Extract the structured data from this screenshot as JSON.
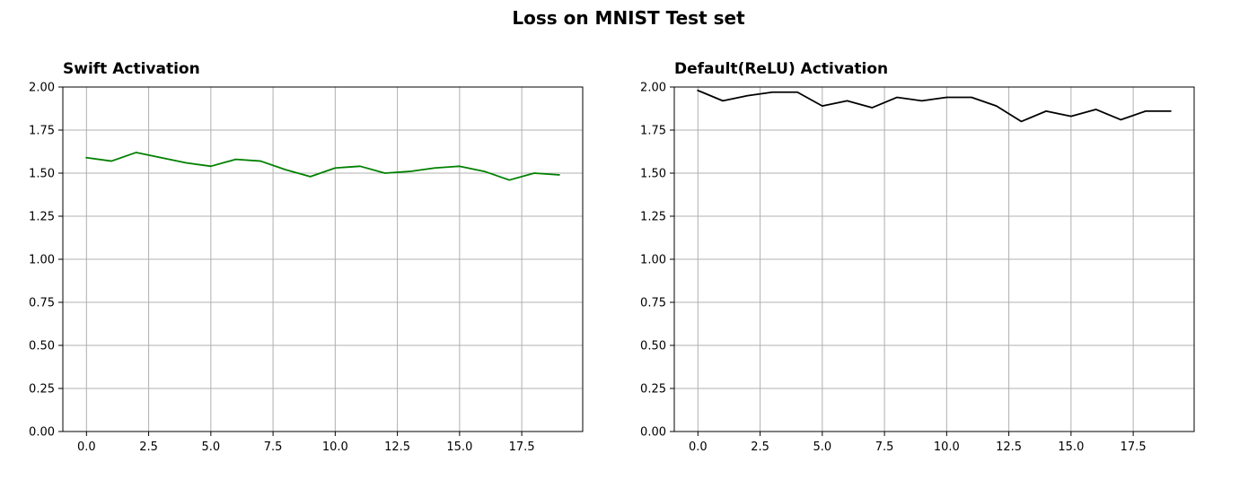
{
  "figure": {
    "title": "Loss on MNIST Test set"
  },
  "chart_data": [
    {
      "type": "line",
      "title": "Swift Activation",
      "xlabel": "",
      "ylabel": "",
      "xlim": [
        -0.95,
        19.95
      ],
      "ylim": [
        0,
        2
      ],
      "grid": true,
      "x_ticks": [
        0,
        2.5,
        5,
        7.5,
        10,
        12.5,
        15,
        17.5
      ],
      "x_tick_labels": [
        "0.0",
        "2.5",
        "5.0",
        "7.5",
        "10.0",
        "12.5",
        "15.0",
        "17.5"
      ],
      "y_ticks": [
        0,
        0.25,
        0.5,
        0.75,
        1,
        1.25,
        1.5,
        1.75,
        2
      ],
      "y_tick_labels": [
        "0.00",
        "0.25",
        "0.50",
        "0.75",
        "1.00",
        "1.25",
        "1.50",
        "1.75",
        "2.00"
      ],
      "series": [
        {
          "color": "#008000",
          "x": [
            0,
            1,
            2,
            3,
            4,
            5,
            6,
            7,
            8,
            9,
            10,
            11,
            12,
            13,
            14,
            15,
            16,
            17,
            18,
            19
          ],
          "y": [
            1.59,
            1.57,
            1.62,
            1.59,
            1.56,
            1.54,
            1.58,
            1.57,
            1.52,
            1.48,
            1.53,
            1.54,
            1.5,
            1.51,
            1.53,
            1.54,
            1.51,
            1.46,
            1.5,
            1.49
          ]
        }
      ]
    },
    {
      "type": "line",
      "title": "Default(ReLU) Activation",
      "xlabel": "",
      "ylabel": "",
      "xlim": [
        -0.95,
        19.95
      ],
      "ylim": [
        0,
        2
      ],
      "grid": true,
      "x_ticks": [
        0,
        2.5,
        5,
        7.5,
        10,
        12.5,
        15,
        17.5
      ],
      "x_tick_labels": [
        "0.0",
        "2.5",
        "5.0",
        "7.5",
        "10.0",
        "12.5",
        "15.0",
        "17.5"
      ],
      "y_ticks": [
        0,
        0.25,
        0.5,
        0.75,
        1,
        1.25,
        1.5,
        1.75,
        2
      ],
      "y_tick_labels": [
        "0.00",
        "0.25",
        "0.50",
        "0.75",
        "1.00",
        "1.25",
        "1.50",
        "1.75",
        "2.00"
      ],
      "series": [
        {
          "color": "#000000",
          "x": [
            0,
            1,
            2,
            3,
            4,
            5,
            6,
            7,
            8,
            9,
            10,
            11,
            12,
            13,
            14,
            15,
            16,
            17,
            18,
            19
          ],
          "y": [
            1.98,
            1.92,
            1.95,
            1.97,
            1.97,
            1.89,
            1.92,
            1.88,
            1.94,
            1.92,
            1.94,
            1.94,
            1.89,
            1.8,
            1.86,
            1.83,
            1.87,
            1.81,
            1.86,
            1.86
          ]
        }
      ]
    }
  ]
}
